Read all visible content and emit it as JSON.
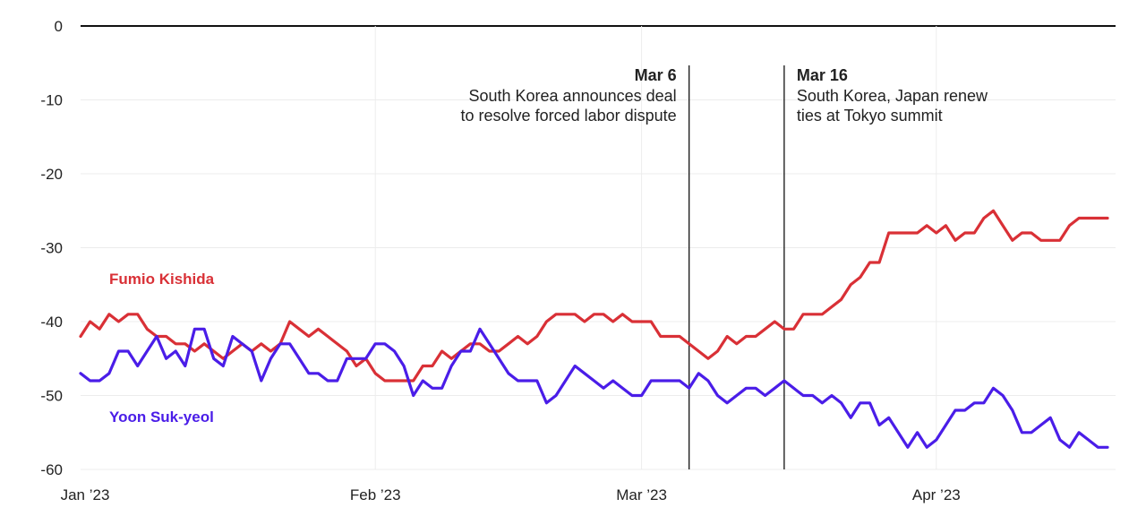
{
  "chart_data": {
    "type": "line",
    "title": "",
    "xlabel": "",
    "ylabel": "",
    "ylim": [
      -60,
      0
    ],
    "y_ticks": [
      0,
      -10,
      -20,
      -30,
      -40,
      -50,
      -60
    ],
    "x_ticks": [
      {
        "date": "2023-01-01",
        "label": "Jan ’23"
      },
      {
        "date": "2023-02-01",
        "label": "Feb ’23"
      },
      {
        "date": "2023-03-01",
        "label": "Mar ’23"
      },
      {
        "date": "2023-04-01",
        "label": "Apr ’23"
      }
    ],
    "grid": true,
    "annotations": [
      {
        "date": "2023-03-06",
        "title": "Mar 6",
        "lines": [
          "South Korea announces deal",
          "to resolve forced labor dispute"
        ],
        "text_anchor": "end"
      },
      {
        "date": "2023-03-16",
        "title": "Mar 16",
        "lines": [
          "South Korea, Japan renew",
          "ties at Tokyo summit"
        ],
        "text_anchor": "start"
      }
    ],
    "series": [
      {
        "name": "Fumio Kishida",
        "color": "#d93036",
        "start_date": "2023-01-01",
        "values": [
          -42,
          -40,
          -41,
          -39,
          -40,
          -39,
          -39,
          -41,
          -42,
          -42,
          -43,
          -43,
          -44,
          -43,
          -44,
          -45,
          -44,
          -43,
          -44,
          -43,
          -44,
          -43,
          -40,
          -41,
          -42,
          -41,
          -42,
          -43,
          -44,
          -46,
          -45,
          -47,
          -48,
          -48,
          -48,
          -48,
          -46,
          -46,
          -44,
          -45,
          -44,
          -43,
          -43,
          -44,
          -44,
          -43,
          -42,
          -43,
          -42,
          -40,
          -39,
          -39,
          -39,
          -40,
          -39,
          -39,
          -40,
          -39,
          -40,
          -40,
          -40,
          -42,
          -42,
          -42,
          -43,
          -44,
          -45,
          -44,
          -42,
          -43,
          -42,
          -42,
          -41,
          -40,
          -41,
          -41,
          -39,
          -39,
          -39,
          -38,
          -37,
          -35,
          -34,
          -32,
          -32,
          -28,
          -28,
          -28,
          -28,
          -27,
          -28,
          -27,
          -29,
          -28,
          -28,
          -26,
          -25,
          -27,
          -29,
          -28,
          -28,
          -29,
          -29,
          -29,
          -27,
          -26,
          -26,
          -26,
          -26
        ]
      },
      {
        "name": "Yoon Suk-yeol",
        "color": "#4a1de8",
        "start_date": "2023-01-01",
        "values": [
          -47,
          -48,
          -48,
          -47,
          -44,
          -44,
          -46,
          -44,
          -42,
          -45,
          -44,
          -46,
          -41,
          -41,
          -45,
          -46,
          -42,
          -43,
          -44,
          -48,
          -45,
          -43,
          -43,
          -45,
          -47,
          -47,
          -48,
          -48,
          -45,
          -45,
          -45,
          -43,
          -43,
          -44,
          -46,
          -50,
          -48,
          -49,
          -49,
          -46,
          -44,
          -44,
          -41,
          -43,
          -45,
          -47,
          -48,
          -48,
          -48,
          -51,
          -50,
          -48,
          -46,
          -47,
          -48,
          -49,
          -48,
          -49,
          -50,
          -50,
          -48,
          -48,
          -48,
          -48,
          -49,
          -47,
          -48,
          -50,
          -51,
          -50,
          -49,
          -49,
          -50,
          -49,
          -48,
          -49,
          -50,
          -50,
          -51,
          -50,
          -51,
          -53,
          -51,
          -51,
          -54,
          -53,
          -55,
          -57,
          -55,
          -57,
          -56,
          -54,
          -52,
          -52,
          -51,
          -51,
          -49,
          -50,
          -52,
          -55,
          -55,
          -54,
          -53,
          -56,
          -57,
          -55,
          -56,
          -57,
          -57
        ]
      }
    ]
  }
}
